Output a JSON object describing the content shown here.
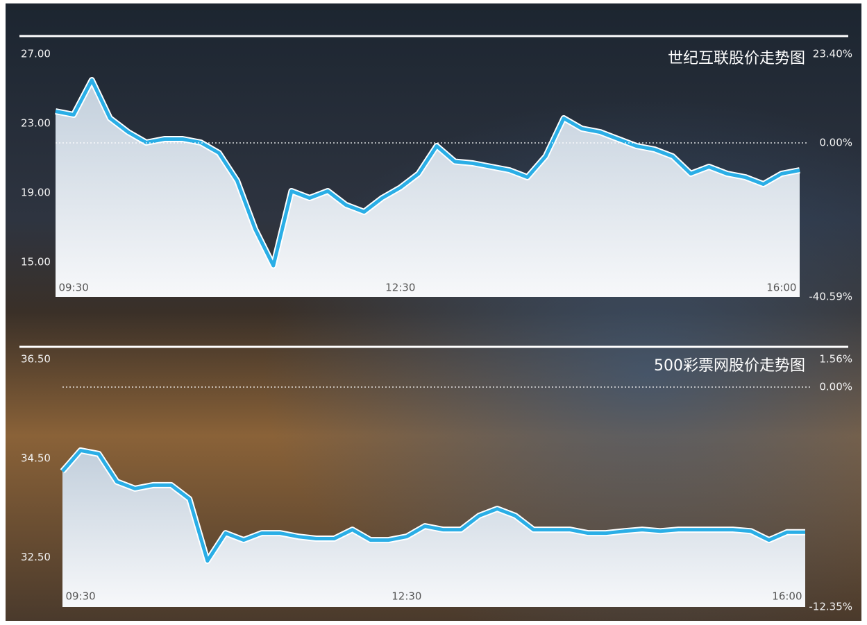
{
  "chart_data": [
    {
      "type": "line",
      "title": "世纪互联股价走势图",
      "x": [
        -10,
        0,
        10,
        20,
        30,
        40,
        50,
        60,
        70,
        80,
        90,
        100,
        110,
        120,
        130,
        140,
        150,
        160,
        170,
        180,
        190,
        200,
        210,
        220,
        230,
        240,
        250,
        260,
        270,
        280,
        290,
        300,
        310,
        320,
        330,
        340,
        350,
        360,
        370,
        380,
        390,
        400
      ],
      "values": [
        23.7,
        23.5,
        25.5,
        23.3,
        22.5,
        21.9,
        22.1,
        22.1,
        21.9,
        21.3,
        19.7,
        16.9,
        14.8,
        19.1,
        18.7,
        19.1,
        18.3,
        17.9,
        18.7,
        19.3,
        20.1,
        21.7,
        20.8,
        20.7,
        20.5,
        20.3,
        19.9,
        21.1,
        23.3,
        22.7,
        22.5,
        22.1,
        21.7,
        21.5,
        21.1,
        20.1,
        20.5,
        20.1,
        19.9,
        19.5,
        20.1,
        20.3
      ],
      "color": "#2aaee6",
      "xlim": [
        -10,
        400
      ],
      "xticks": [
        {
          "value": 0,
          "label": "09:30"
        },
        {
          "value": 180,
          "label": "12:30"
        },
        {
          "value": 390,
          "label": "16:00"
        }
      ],
      "ylim": [
        13,
        27
      ],
      "yticks": [
        {
          "value": 27,
          "label": "27.00"
        },
        {
          "value": 23,
          "label": "23.00"
        },
        {
          "value": 19,
          "label": "19.00"
        },
        {
          "value": 15,
          "label": "15.00"
        }
      ],
      "y2lim": [
        -40.59,
        23.4
      ],
      "y2ticks": [
        {
          "value": 23.4,
          "label": "23.40%"
        },
        {
          "value": 0,
          "label": "0.00%"
        },
        {
          "value": -40.59,
          "label": "-40.59%"
        }
      ]
    },
    {
      "type": "line",
      "title": "500彩票网股价走势图",
      "x": [
        -10,
        0,
        10,
        20,
        30,
        40,
        50,
        60,
        70,
        80,
        90,
        100,
        110,
        120,
        130,
        140,
        150,
        160,
        170,
        180,
        190,
        200,
        210,
        220,
        230,
        240,
        250,
        260,
        270,
        280,
        290,
        300,
        310,
        320,
        330,
        340,
        350,
        360,
        370,
        380,
        390,
        400
      ],
      "values": [
        34.24,
        34.66,
        34.59,
        34.03,
        33.89,
        33.96,
        33.96,
        33.68,
        32.43,
        32.99,
        32.85,
        32.99,
        32.99,
        32.92,
        32.88,
        32.88,
        33.06,
        32.85,
        32.85,
        32.92,
        33.13,
        33.06,
        33.06,
        33.34,
        33.48,
        33.34,
        33.06,
        33.06,
        33.06,
        32.99,
        32.99,
        33.03,
        33.06,
        33.03,
        33.06,
        33.06,
        33.06,
        33.06,
        33.03,
        32.85,
        33.01,
        33.01
      ],
      "color": "#2aaee6",
      "xlim": [
        -10,
        400
      ],
      "xticks": [
        {
          "value": 0,
          "label": "09:30"
        },
        {
          "value": 180,
          "label": "12:30"
        },
        {
          "value": 390,
          "label": "16:00"
        }
      ],
      "ylim": [
        31.5,
        36.5
      ],
      "yticks": [
        {
          "value": 36.5,
          "label": "36.50"
        },
        {
          "value": 34.5,
          "label": "34.50"
        },
        {
          "value": 32.5,
          "label": "32.50"
        }
      ],
      "y2lim": [
        -12.35,
        1.56
      ],
      "y2ticks": [
        {
          "value": 1.56,
          "label": "1.56%"
        },
        {
          "value": 0,
          "label": "0.00%"
        },
        {
          "value": -12.35,
          "label": "-12.35%"
        }
      ]
    }
  ]
}
